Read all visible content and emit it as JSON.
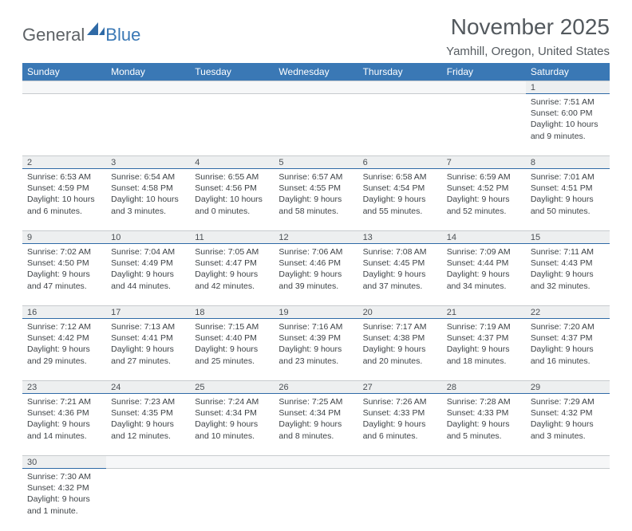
{
  "brand": {
    "part1": "General",
    "part2": "Blue"
  },
  "title": "November 2025",
  "location": "Yamhill, Oregon, United States",
  "colors": {
    "header_bg": "#3a78b5",
    "daynum_bg": "#edeff0",
    "text": "#3e4347",
    "brand_gray": "#5d6266",
    "brand_blue": "#3a78b5"
  },
  "day_headers": [
    "Sunday",
    "Monday",
    "Tuesday",
    "Wednesday",
    "Thursday",
    "Friday",
    "Saturday"
  ],
  "weeks": [
    [
      null,
      null,
      null,
      null,
      null,
      null,
      {
        "n": "1",
        "sr": "Sunrise: 7:51 AM",
        "ss": "Sunset: 6:00 PM",
        "d1": "Daylight: 10 hours",
        "d2": "and 9 minutes."
      }
    ],
    [
      {
        "n": "2",
        "sr": "Sunrise: 6:53 AM",
        "ss": "Sunset: 4:59 PM",
        "d1": "Daylight: 10 hours",
        "d2": "and 6 minutes."
      },
      {
        "n": "3",
        "sr": "Sunrise: 6:54 AM",
        "ss": "Sunset: 4:58 PM",
        "d1": "Daylight: 10 hours",
        "d2": "and 3 minutes."
      },
      {
        "n": "4",
        "sr": "Sunrise: 6:55 AM",
        "ss": "Sunset: 4:56 PM",
        "d1": "Daylight: 10 hours",
        "d2": "and 0 minutes."
      },
      {
        "n": "5",
        "sr": "Sunrise: 6:57 AM",
        "ss": "Sunset: 4:55 PM",
        "d1": "Daylight: 9 hours",
        "d2": "and 58 minutes."
      },
      {
        "n": "6",
        "sr": "Sunrise: 6:58 AM",
        "ss": "Sunset: 4:54 PM",
        "d1": "Daylight: 9 hours",
        "d2": "and 55 minutes."
      },
      {
        "n": "7",
        "sr": "Sunrise: 6:59 AM",
        "ss": "Sunset: 4:52 PM",
        "d1": "Daylight: 9 hours",
        "d2": "and 52 minutes."
      },
      {
        "n": "8",
        "sr": "Sunrise: 7:01 AM",
        "ss": "Sunset: 4:51 PM",
        "d1": "Daylight: 9 hours",
        "d2": "and 50 minutes."
      }
    ],
    [
      {
        "n": "9",
        "sr": "Sunrise: 7:02 AM",
        "ss": "Sunset: 4:50 PM",
        "d1": "Daylight: 9 hours",
        "d2": "and 47 minutes."
      },
      {
        "n": "10",
        "sr": "Sunrise: 7:04 AM",
        "ss": "Sunset: 4:49 PM",
        "d1": "Daylight: 9 hours",
        "d2": "and 44 minutes."
      },
      {
        "n": "11",
        "sr": "Sunrise: 7:05 AM",
        "ss": "Sunset: 4:47 PM",
        "d1": "Daylight: 9 hours",
        "d2": "and 42 minutes."
      },
      {
        "n": "12",
        "sr": "Sunrise: 7:06 AM",
        "ss": "Sunset: 4:46 PM",
        "d1": "Daylight: 9 hours",
        "d2": "and 39 minutes."
      },
      {
        "n": "13",
        "sr": "Sunrise: 7:08 AM",
        "ss": "Sunset: 4:45 PM",
        "d1": "Daylight: 9 hours",
        "d2": "and 37 minutes."
      },
      {
        "n": "14",
        "sr": "Sunrise: 7:09 AM",
        "ss": "Sunset: 4:44 PM",
        "d1": "Daylight: 9 hours",
        "d2": "and 34 minutes."
      },
      {
        "n": "15",
        "sr": "Sunrise: 7:11 AM",
        "ss": "Sunset: 4:43 PM",
        "d1": "Daylight: 9 hours",
        "d2": "and 32 minutes."
      }
    ],
    [
      {
        "n": "16",
        "sr": "Sunrise: 7:12 AM",
        "ss": "Sunset: 4:42 PM",
        "d1": "Daylight: 9 hours",
        "d2": "and 29 minutes."
      },
      {
        "n": "17",
        "sr": "Sunrise: 7:13 AM",
        "ss": "Sunset: 4:41 PM",
        "d1": "Daylight: 9 hours",
        "d2": "and 27 minutes."
      },
      {
        "n": "18",
        "sr": "Sunrise: 7:15 AM",
        "ss": "Sunset: 4:40 PM",
        "d1": "Daylight: 9 hours",
        "d2": "and 25 minutes."
      },
      {
        "n": "19",
        "sr": "Sunrise: 7:16 AM",
        "ss": "Sunset: 4:39 PM",
        "d1": "Daylight: 9 hours",
        "d2": "and 23 minutes."
      },
      {
        "n": "20",
        "sr": "Sunrise: 7:17 AM",
        "ss": "Sunset: 4:38 PM",
        "d1": "Daylight: 9 hours",
        "d2": "and 20 minutes."
      },
      {
        "n": "21",
        "sr": "Sunrise: 7:19 AM",
        "ss": "Sunset: 4:37 PM",
        "d1": "Daylight: 9 hours",
        "d2": "and 18 minutes."
      },
      {
        "n": "22",
        "sr": "Sunrise: 7:20 AM",
        "ss": "Sunset: 4:37 PM",
        "d1": "Daylight: 9 hours",
        "d2": "and 16 minutes."
      }
    ],
    [
      {
        "n": "23",
        "sr": "Sunrise: 7:21 AM",
        "ss": "Sunset: 4:36 PM",
        "d1": "Daylight: 9 hours",
        "d2": "and 14 minutes."
      },
      {
        "n": "24",
        "sr": "Sunrise: 7:23 AM",
        "ss": "Sunset: 4:35 PM",
        "d1": "Daylight: 9 hours",
        "d2": "and 12 minutes."
      },
      {
        "n": "25",
        "sr": "Sunrise: 7:24 AM",
        "ss": "Sunset: 4:34 PM",
        "d1": "Daylight: 9 hours",
        "d2": "and 10 minutes."
      },
      {
        "n": "26",
        "sr": "Sunrise: 7:25 AM",
        "ss": "Sunset: 4:34 PM",
        "d1": "Daylight: 9 hours",
        "d2": "and 8 minutes."
      },
      {
        "n": "27",
        "sr": "Sunrise: 7:26 AM",
        "ss": "Sunset: 4:33 PM",
        "d1": "Daylight: 9 hours",
        "d2": "and 6 minutes."
      },
      {
        "n": "28",
        "sr": "Sunrise: 7:28 AM",
        "ss": "Sunset: 4:33 PM",
        "d1": "Daylight: 9 hours",
        "d2": "and 5 minutes."
      },
      {
        "n": "29",
        "sr": "Sunrise: 7:29 AM",
        "ss": "Sunset: 4:32 PM",
        "d1": "Daylight: 9 hours",
        "d2": "and 3 minutes."
      }
    ],
    [
      {
        "n": "30",
        "sr": "Sunrise: 7:30 AM",
        "ss": "Sunset: 4:32 PM",
        "d1": "Daylight: 9 hours",
        "d2": "and 1 minute."
      },
      null,
      null,
      null,
      null,
      null,
      null
    ]
  ]
}
